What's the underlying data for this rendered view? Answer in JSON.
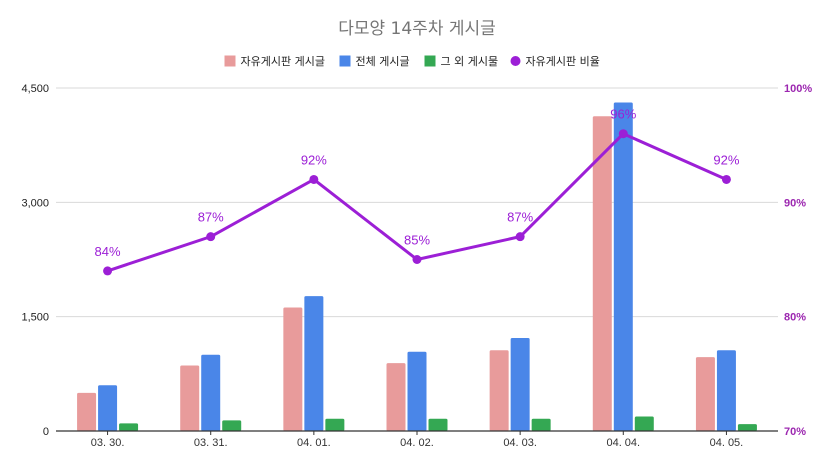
{
  "chart_data": {
    "type": "bar",
    "title": "다모양 14주차 게시글",
    "categories": [
      "03. 30.",
      "03. 31.",
      "04. 01.",
      "04. 02.",
      "04. 03.",
      "04. 04.",
      "04. 05."
    ],
    "series": [
      {
        "name": "자유게시판 게시글",
        "type": "bar",
        "axis": "left",
        "color": "#e89b9b",
        "values": [
          500,
          860,
          1620,
          890,
          1060,
          4130,
          970
        ]
      },
      {
        "name": "전체 게시글",
        "type": "bar",
        "axis": "left",
        "color": "#4a86e8",
        "values": [
          600,
          1000,
          1770,
          1040,
          1220,
          4310,
          1060
        ]
      },
      {
        "name": "그 외 게시물",
        "type": "bar",
        "axis": "left",
        "color": "#34a853",
        "values": [
          100,
          140,
          160,
          160,
          160,
          190,
          90
        ]
      },
      {
        "name": "자유게시판 비율",
        "type": "line",
        "axis": "right",
        "color": "#9c1fd6",
        "values": [
          84,
          87,
          92,
          85,
          87,
          96,
          92
        ],
        "labels": [
          "84%",
          "87%",
          "92%",
          "85%",
          "87%",
          "96%",
          "92%"
        ]
      }
    ],
    "y_left": {
      "min": 0,
      "max": 4500,
      "ticks": [
        0,
        1500,
        3000,
        4500
      ],
      "tick_labels": [
        "0",
        "1,500",
        "3,000",
        "4,500"
      ]
    },
    "y_right": {
      "min": 70,
      "max": 100,
      "ticks": [
        70,
        80,
        90,
        100
      ],
      "tick_labels": [
        "70%",
        "80%",
        "90%",
        "100%"
      ]
    },
    "grid": true,
    "legend_position": "top"
  },
  "colors": {
    "title": "#757575",
    "grid": "#d9d9d9",
    "axis": "#333333",
    "right_axis_text": "#9c27b0"
  }
}
